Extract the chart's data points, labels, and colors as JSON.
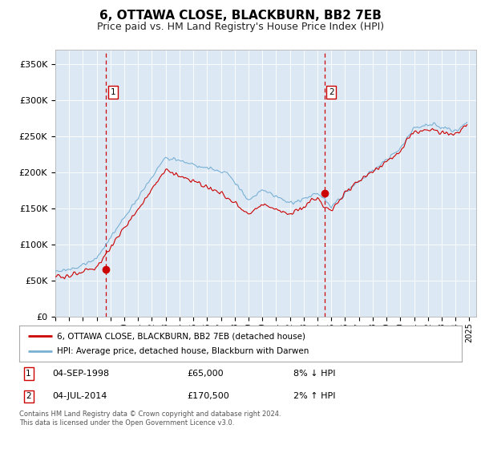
{
  "title": "6, OTTAWA CLOSE, BLACKBURN, BB2 7EB",
  "subtitle": "Price paid vs. HM Land Registry's House Price Index (HPI)",
  "title_fontsize": 11,
  "subtitle_fontsize": 9,
  "plot_bg_color": "#dce9f5",
  "fig_bg_color": "#ffffff",
  "ylabel_ticks": [
    "£0",
    "£50K",
    "£100K",
    "£150K",
    "£200K",
    "£250K",
    "£300K",
    "£350K"
  ],
  "ytick_vals": [
    0,
    50000,
    100000,
    150000,
    200000,
    250000,
    300000,
    350000
  ],
  "ylim": [
    0,
    370000
  ],
  "xlim_start": 1995.0,
  "xlim_end": 2025.5,
  "hpi_line_color": "#7ab0d4",
  "price_line_color": "#cc0000",
  "vline_color": "#cc0000",
  "marker_color": "#cc0000",
  "purchase1_year": 1998.67,
  "purchase1_price": 65000,
  "purchase2_year": 2014.5,
  "purchase2_price": 170500,
  "legend_label_red": "6, OTTAWA CLOSE, BLACKBURN, BB2 7EB (detached house)",
  "legend_label_blue": "HPI: Average price, detached house, Blackburn with Darwen",
  "annotation1_num": "1",
  "annotation1_date": "04-SEP-1998",
  "annotation1_price": "£65,000",
  "annotation1_hpi": "8% ↓ HPI",
  "annotation2_num": "2",
  "annotation2_date": "04-JUL-2014",
  "annotation2_price": "£170,500",
  "annotation2_hpi": "2% ↑ HPI",
  "footer": "Contains HM Land Registry data © Crown copyright and database right 2024.\nThis data is licensed under the Open Government Licence v3.0.",
  "grid_color": "#ffffff"
}
